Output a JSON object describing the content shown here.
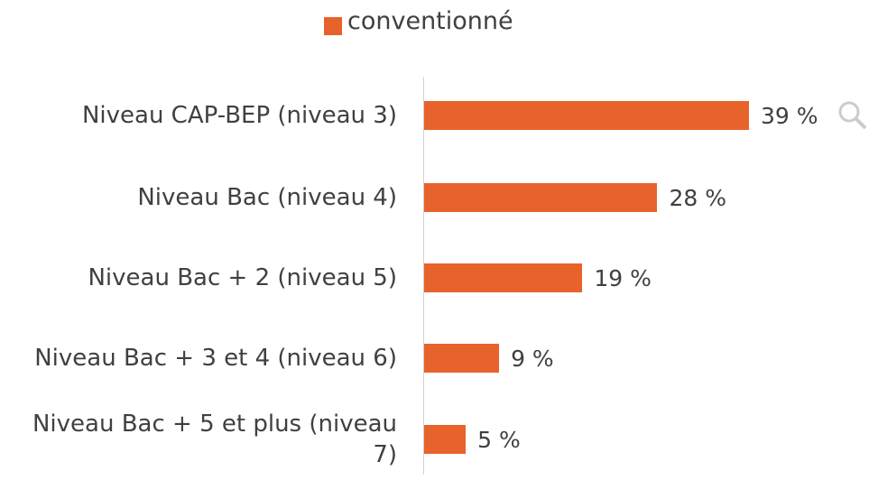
{
  "chart_data": {
    "type": "bar",
    "orientation": "horizontal",
    "categories": [
      "Niveau CAP-BEP (niveau 3)",
      "Niveau Bac (niveau 4)",
      "Niveau Bac + 2 (niveau 5)",
      "Niveau Bac + 3 et 4 (niveau 6)",
      "Niveau Bac + 5 et plus (niveau 7)"
    ],
    "series": [
      {
        "name": "conventionné",
        "color": "#e8622c",
        "values": [
          39,
          28,
          19,
          9,
          5
        ],
        "value_labels": [
          "39 %",
          "28 %",
          "19 %",
          "9 %",
          "5 %"
        ]
      }
    ],
    "legend": "top"
  }
}
